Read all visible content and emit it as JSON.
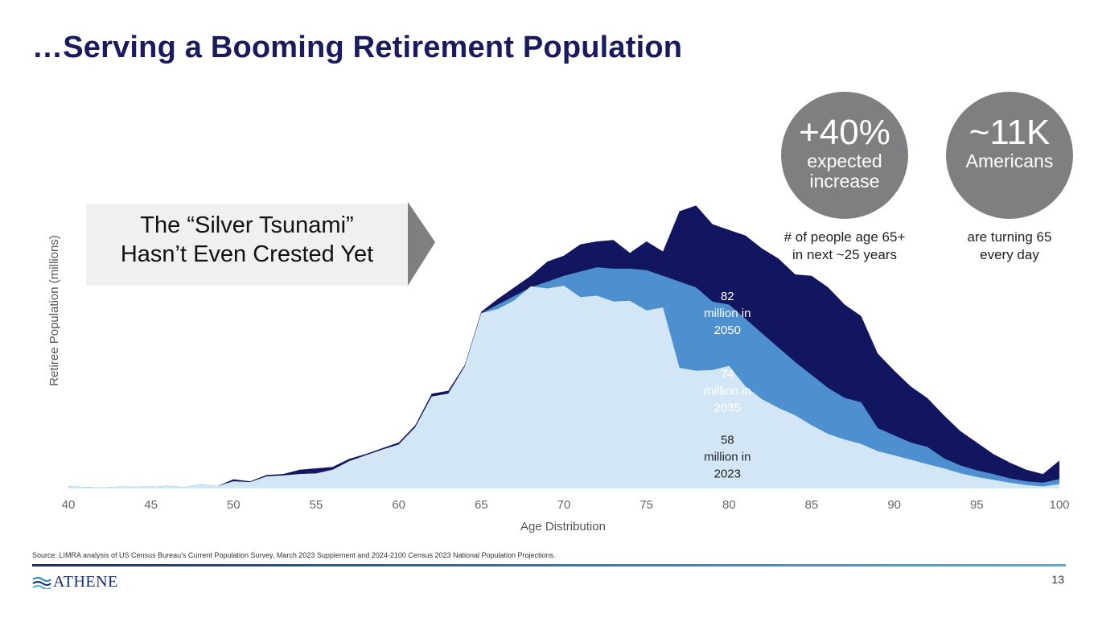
{
  "slide": {
    "title": "…Serving a Booming Retirement Population",
    "callout_lines": [
      "The “Silver Tsunami”",
      "Hasn’t Even Crested Yet"
    ],
    "stat1": {
      "big": "+40%",
      "small_lines": [
        "expected",
        "increase"
      ],
      "caption_lines": [
        "# of people age 65+",
        "in next ~25 years"
      ]
    },
    "stat2": {
      "big": "~11K",
      "small_lines": [
        "Americans"
      ],
      "caption_lines": [
        "are turning 65",
        "every day"
      ]
    },
    "source": "Source: LIMRA analysis of US Census Bureau’s Current Population Survey, March 2023 Supplement and 2024-2100 Census 2023 National Population Projections.",
    "logo_text": "ATHENE",
    "page_number": "13"
  },
  "colors": {
    "title": "#1a1a5e",
    "s2023": "#d2e6f5",
    "s2035": "#4e8fcf",
    "s2050": "#121660",
    "circle": "#7f7f81",
    "arrow": "#7f7f81",
    "callout_bg": "#f0f0f0"
  },
  "chart_data": {
    "type": "area",
    "title": "",
    "xlabel": "Age Distribution",
    "ylabel": "Retiree Population (millions)",
    "xlim": [
      40,
      100
    ],
    "ylim": [
      0,
      1
    ],
    "xticks": [
      40,
      45,
      50,
      55,
      60,
      65,
      70,
      75,
      80,
      85,
      90,
      95,
      100
    ],
    "x": [
      40,
      41,
      42,
      43,
      44,
      45,
      46,
      47,
      48,
      49,
      50,
      51,
      52,
      53,
      54,
      55,
      56,
      57,
      58,
      59,
      60,
      61,
      62,
      63,
      64,
      65,
      66,
      67,
      68,
      69,
      70,
      71,
      72,
      73,
      74,
      75,
      76,
      77,
      78,
      79,
      80,
      81,
      82,
      83,
      84,
      85,
      86,
      87,
      88,
      89,
      90,
      91,
      92,
      93,
      94,
      95,
      96,
      97,
      98,
      99,
      100
    ],
    "series": [
      {
        "name": "58 million in 2023",
        "label_lines": [
          "58",
          "million in",
          "2023"
        ],
        "label_at": [
          79.9,
          0.155
        ],
        "label_color": "#222222",
        "values": [
          0.008,
          0.005,
          0.004,
          0.006,
          0.007,
          0.006,
          0.009,
          0.005,
          0.015,
          0.008,
          0.025,
          0.022,
          0.042,
          0.045,
          0.05,
          0.052,
          0.065,
          0.095,
          0.115,
          0.135,
          0.153,
          0.213,
          0.32,
          0.33,
          0.425,
          0.61,
          0.625,
          0.655,
          0.704,
          0.696,
          0.706,
          0.666,
          0.671,
          0.651,
          0.653,
          0.62,
          0.63,
          0.42,
          0.41,
          0.412,
          0.427,
          0.355,
          0.31,
          0.28,
          0.255,
          0.22,
          0.19,
          0.17,
          0.155,
          0.13,
          0.115,
          0.1,
          0.085,
          0.07,
          0.053,
          0.04,
          0.03,
          0.02,
          0.012,
          0.007,
          0.015
        ]
      },
      {
        "name": "74 million in 2035",
        "label_lines": [
          "74",
          "million in",
          "2035"
        ],
        "label_at": [
          79.9,
          0.385
        ],
        "label_color": "#ffffff",
        "values": [
          0.008,
          0.005,
          0.004,
          0.006,
          0.007,
          0.006,
          0.009,
          0.005,
          0.015,
          0.008,
          0.025,
          0.022,
          0.042,
          0.045,
          0.05,
          0.052,
          0.065,
          0.095,
          0.115,
          0.135,
          0.153,
          0.213,
          0.32,
          0.33,
          0.425,
          0.61,
          0.64,
          0.67,
          0.7,
          0.72,
          0.74,
          0.755,
          0.77,
          0.765,
          0.765,
          0.76,
          0.74,
          0.72,
          0.7,
          0.65,
          0.64,
          0.59,
          0.54,
          0.49,
          0.44,
          0.395,
          0.35,
          0.315,
          0.3,
          0.21,
          0.185,
          0.16,
          0.145,
          0.105,
          0.08,
          0.063,
          0.05,
          0.035,
          0.025,
          0.02,
          0.033
        ]
      },
      {
        "name": "82 million in 2050",
        "label_lines": [
          "82",
          "million in",
          "2050"
        ],
        "label_at": [
          79.9,
          0.655
        ],
        "label_color": "#ffffff",
        "values": [
          0.008,
          0.005,
          0.004,
          0.006,
          0.007,
          0.006,
          0.009,
          0.005,
          0.015,
          0.008,
          0.032,
          0.025,
          0.047,
          0.05,
          0.065,
          0.07,
          0.075,
          0.103,
          0.12,
          0.14,
          0.16,
          0.22,
          0.33,
          0.34,
          0.43,
          0.615,
          0.66,
          0.7,
          0.74,
          0.79,
          0.81,
          0.85,
          0.86,
          0.865,
          0.82,
          0.86,
          0.825,
          0.965,
          0.985,
          0.92,
          0.9,
          0.88,
          0.835,
          0.8,
          0.745,
          0.74,
          0.7,
          0.64,
          0.6,
          0.47,
          0.41,
          0.355,
          0.315,
          0.255,
          0.2,
          0.16,
          0.12,
          0.09,
          0.065,
          0.05,
          0.097
        ]
      }
    ]
  }
}
